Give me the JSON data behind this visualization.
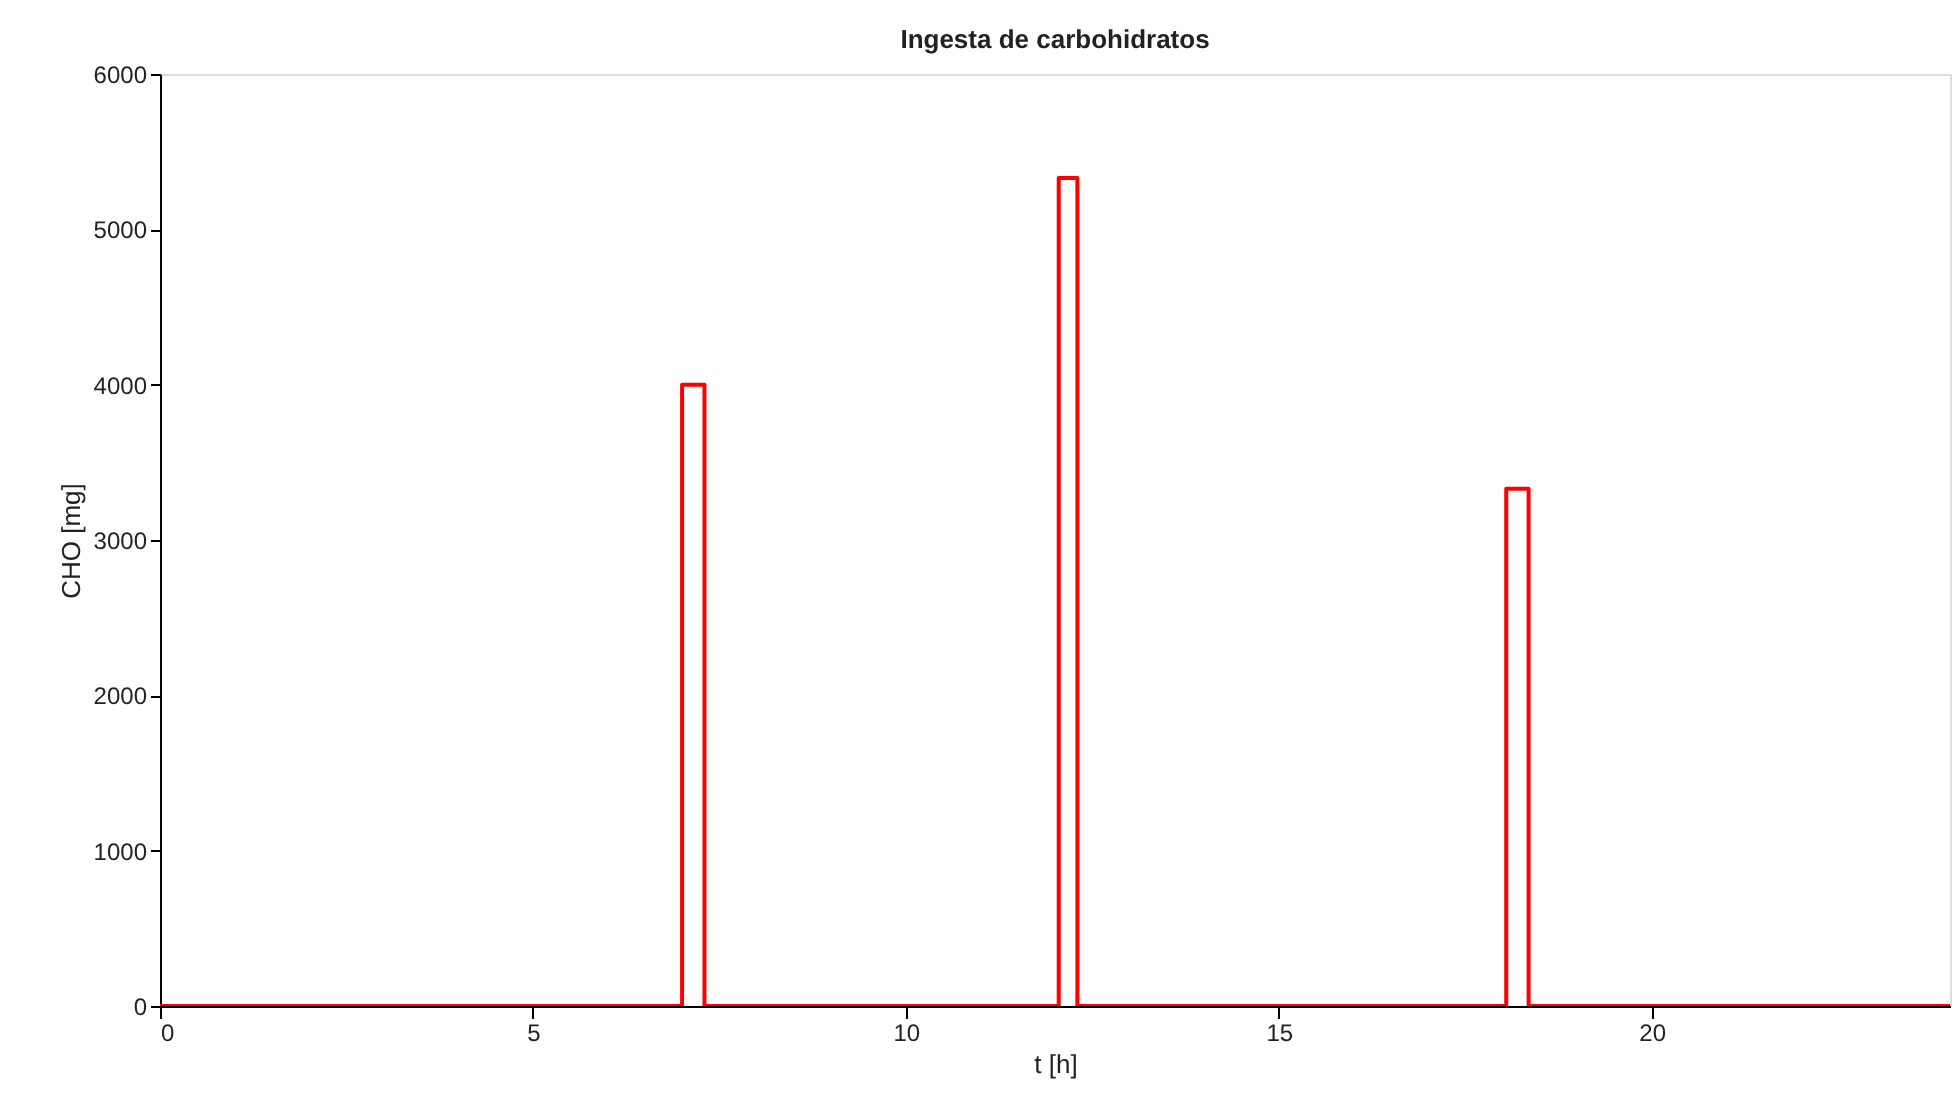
{
  "chart_data": {
    "type": "step",
    "title": "Ingesta de carbohidratos",
    "xlabel": "t [h]",
    "ylabel": "CHO [mg]",
    "x": [
      0,
      7.0,
      7.3,
      12.05,
      12.3,
      18.05,
      18.35,
      24
    ],
    "series": [
      {
        "color": "#ff0000",
        "values": [
          0,
          4000,
          0,
          5330,
          0,
          3330,
          0,
          0
        ]
      }
    ],
    "xlim": [
      0,
      24
    ],
    "xticks": [
      0,
      5,
      10,
      15,
      20
    ],
    "ylim": [
      0,
      6000
    ],
    "yticks": [
      0,
      1000,
      2000,
      3000,
      4000,
      5000,
      6000
    ],
    "grid": false
  }
}
